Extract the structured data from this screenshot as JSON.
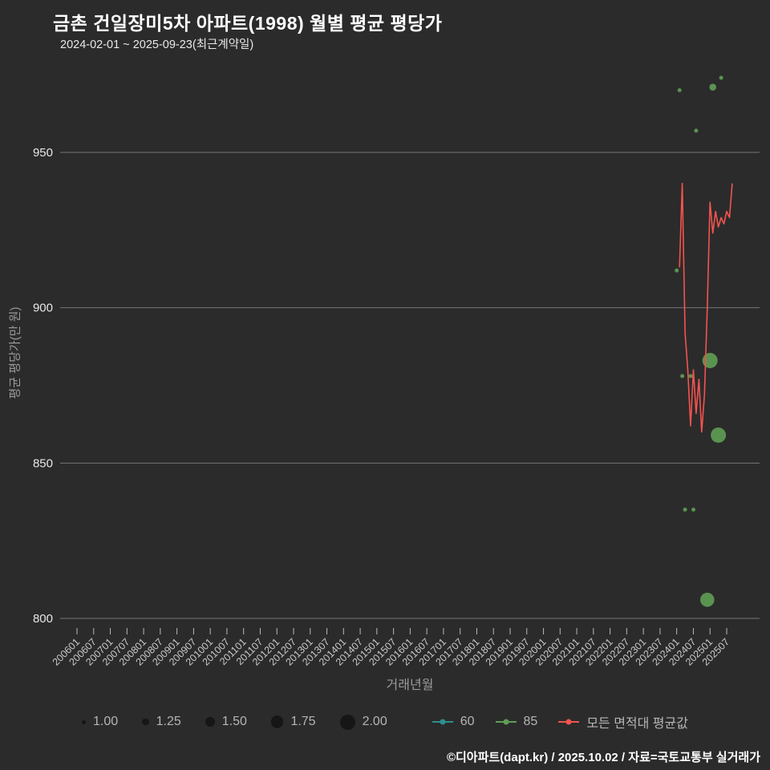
{
  "page": {
    "title": "금촌 건일장미5차 아파트(1998) 월별 평균 평당가",
    "subtitle": "2024-02-01 ~ 2025-09-23(최근계약일)",
    "footer": "©디아파트(dapt.kr) / 2025.10.02 / 자료=국토교통부 실거래가"
  },
  "chart_data": {
    "type": "line",
    "title": "금촌 건일장미5차 아파트(1998) 월별 평균 평당가",
    "subtitle": "2024-02-01 ~ 2025-09-23(최근계약일)",
    "xlabel": "거래년월",
    "ylabel": "평균 평당가(만 원)",
    "ylim": [
      787,
      978
    ],
    "yticks": [
      950,
      900,
      850,
      800
    ],
    "grid": "horizontal",
    "legend_position": "bottom",
    "xticks": [
      "200601",
      "200607",
      "200701",
      "200707",
      "200801",
      "200807",
      "200901",
      "200907",
      "201001",
      "201007",
      "201101",
      "201107",
      "201201",
      "201207",
      "201301",
      "201307",
      "201401",
      "201407",
      "201501",
      "201507",
      "201601",
      "201607",
      "201701",
      "201707",
      "201801",
      "201807",
      "201901",
      "201907",
      "202001",
      "202007",
      "202101",
      "202107",
      "202201",
      "202207",
      "202301",
      "202307",
      "202401",
      "202407",
      "202501",
      "202507"
    ],
    "size_legend": [
      "1.00",
      "1.25",
      "1.50",
      "1.75",
      "2.00"
    ],
    "colors": {
      "grid": "#909090",
      "background": "#2b2b2b",
      "accent_red": "#f4534f",
      "accent_green": "#5f9e54",
      "accent_teal": "#2e8f8f"
    },
    "series": [
      {
        "name": "60",
        "type": "scatter",
        "color": "#2e8f8f",
        "points": []
      },
      {
        "name": "85",
        "type": "scatter",
        "color": "#5f9e54",
        "points": [
          {
            "month": "202401",
            "value": 912,
            "size": 1.0
          },
          {
            "month": "202402",
            "value": 970,
            "size": 1.0
          },
          {
            "month": "202403",
            "value": 878,
            "size": 1.0
          },
          {
            "month": "202404",
            "value": 835,
            "size": 1.0
          },
          {
            "month": "202406",
            "value": 878,
            "size": 1.0
          },
          {
            "month": "202407",
            "value": 835,
            "size": 1.0
          },
          {
            "month": "202408",
            "value": 957,
            "size": 1.0
          },
          {
            "month": "202412",
            "value": 806,
            "size": 1.9
          },
          {
            "month": "202501",
            "value": 883,
            "size": 2.0
          },
          {
            "month": "202502",
            "value": 971,
            "size": 1.25
          },
          {
            "month": "202504",
            "value": 859,
            "size": 2.0
          },
          {
            "month": "202505",
            "value": 974,
            "size": 1.0
          }
        ]
      },
      {
        "name": "모든 면적대 평균값",
        "type": "line",
        "color": "#f4534f",
        "points": [
          {
            "month": "202402",
            "value": 913
          },
          {
            "month": "202403",
            "value": 940
          },
          {
            "month": "202404",
            "value": 892
          },
          {
            "month": "202405",
            "value": 880
          },
          {
            "month": "202406",
            "value": 862
          },
          {
            "month": "202407",
            "value": 880
          },
          {
            "month": "202408",
            "value": 866
          },
          {
            "month": "202409",
            "value": 877
          },
          {
            "month": "202410",
            "value": 860
          },
          {
            "month": "202411",
            "value": 872
          },
          {
            "month": "202412",
            "value": 900
          },
          {
            "month": "202501",
            "value": 934
          },
          {
            "month": "202502",
            "value": 924
          },
          {
            "month": "202503",
            "value": 931
          },
          {
            "month": "202504",
            "value": 926
          },
          {
            "month": "202505",
            "value": 929
          },
          {
            "month": "202506",
            "value": 927
          },
          {
            "month": "202507",
            "value": 931
          },
          {
            "month": "202508",
            "value": 929
          },
          {
            "month": "202509",
            "value": 940
          }
        ]
      }
    ]
  }
}
